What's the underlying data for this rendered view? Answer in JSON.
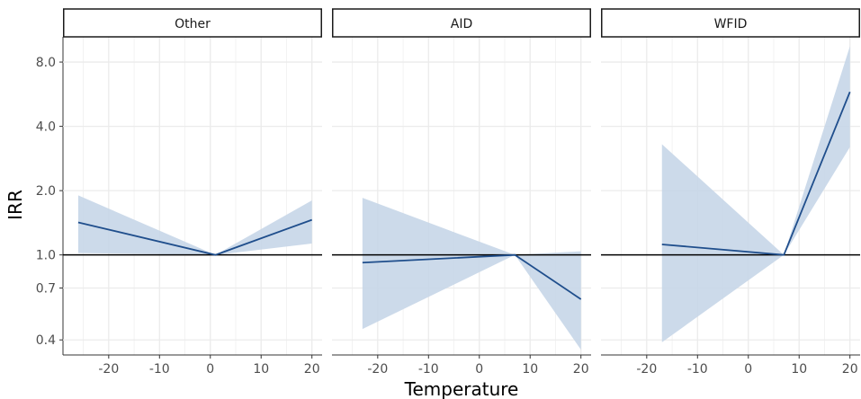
{
  "chart_data": {
    "type": "line",
    "panels": [
      {
        "label": "Other",
        "x": [
          -26,
          1,
          20
        ],
        "irr": [
          1.42,
          1.0,
          1.46
        ],
        "ci_lower": [
          1.02,
          1.0,
          1.13
        ],
        "ci_upper": [
          1.9,
          1.0,
          1.8
        ]
      },
      {
        "label": "AID",
        "x": [
          -23,
          7,
          20
        ],
        "irr": [
          0.92,
          1.0,
          0.62
        ],
        "ci_lower": [
          0.45,
          1.0,
          0.36
        ],
        "ci_upper": [
          1.85,
          1.0,
          1.04
        ]
      },
      {
        "label": "WFID",
        "x": [
          -17,
          7,
          20
        ],
        "irr": [
          1.12,
          1.0,
          5.8
        ],
        "ci_lower": [
          0.39,
          1.0,
          3.2
        ],
        "ci_upper": [
          3.3,
          1.0,
          9.5
        ]
      }
    ],
    "xlabel": "Temperature",
    "ylabel": "IRR",
    "x_ticks": [
      -20,
      -10,
      0,
      10,
      20
    ],
    "x_tick_labels": [
      "-20",
      "-10",
      "0",
      "10",
      "20"
    ],
    "xlim": [
      -29,
      22
    ],
    "y_scale": "log",
    "y_ticks": [
      8.0,
      4.0,
      2.0,
      1.0,
      0.7,
      0.4
    ],
    "y_tick_labels": [
      "8.0",
      "4.0",
      "2.0",
      "1.0",
      "0.7",
      "0.4"
    ],
    "ylim": [
      0.34,
      10.5
    ],
    "reference_line": 1.0,
    "grid": true,
    "colors": {
      "line": "#1f4e8c",
      "ribbon": "#c6d6e8",
      "grid": "#ebebeb",
      "reference": "#000000"
    }
  }
}
